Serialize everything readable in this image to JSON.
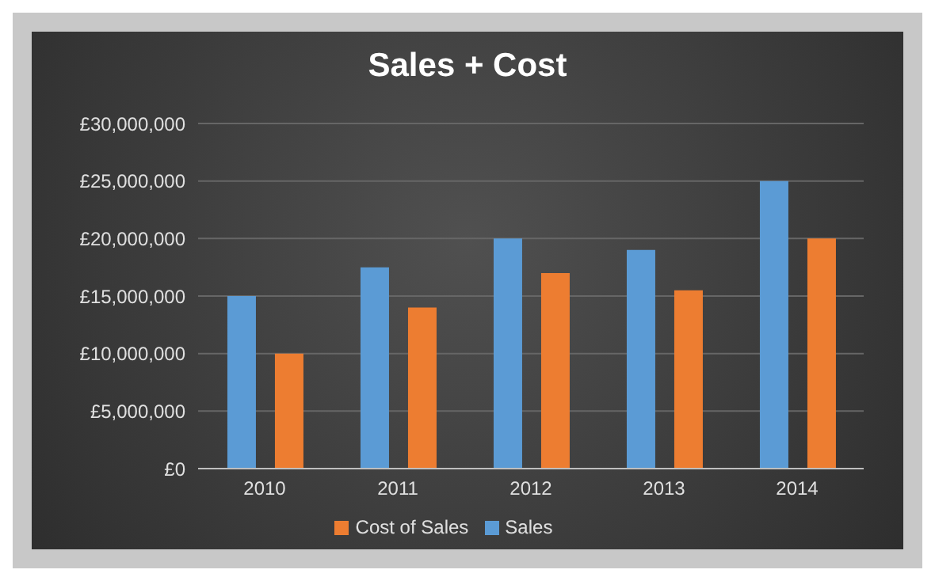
{
  "chart_data": {
    "type": "bar",
    "title": "Sales + Cost",
    "categories": [
      "2010",
      "2011",
      "2012",
      "2013",
      "2014"
    ],
    "series": [
      {
        "name": "Sales",
        "color": "#5b9bd5",
        "values": [
          15000000,
          17500000,
          20000000,
          19000000,
          25000000
        ]
      },
      {
        "name": "Cost of Sales",
        "color": "#ed7d31",
        "values": [
          10000000,
          14000000,
          17000000,
          15500000,
          20000000
        ]
      }
    ],
    "ylim": [
      0,
      30000000
    ],
    "yticks": [
      {
        "value": 0,
        "label": "£0"
      },
      {
        "value": 5000000,
        "label": "£5,000,000"
      },
      {
        "value": 10000000,
        "label": "£10,000,000"
      },
      {
        "value": 15000000,
        "label": "£15,000,000"
      },
      {
        "value": 20000000,
        "label": "£20,000,000"
      },
      {
        "value": 25000000,
        "label": "£25,000,000"
      },
      {
        "value": 30000000,
        "label": "£30,000,000"
      }
    ],
    "grid": "y",
    "legend": "bottom"
  }
}
